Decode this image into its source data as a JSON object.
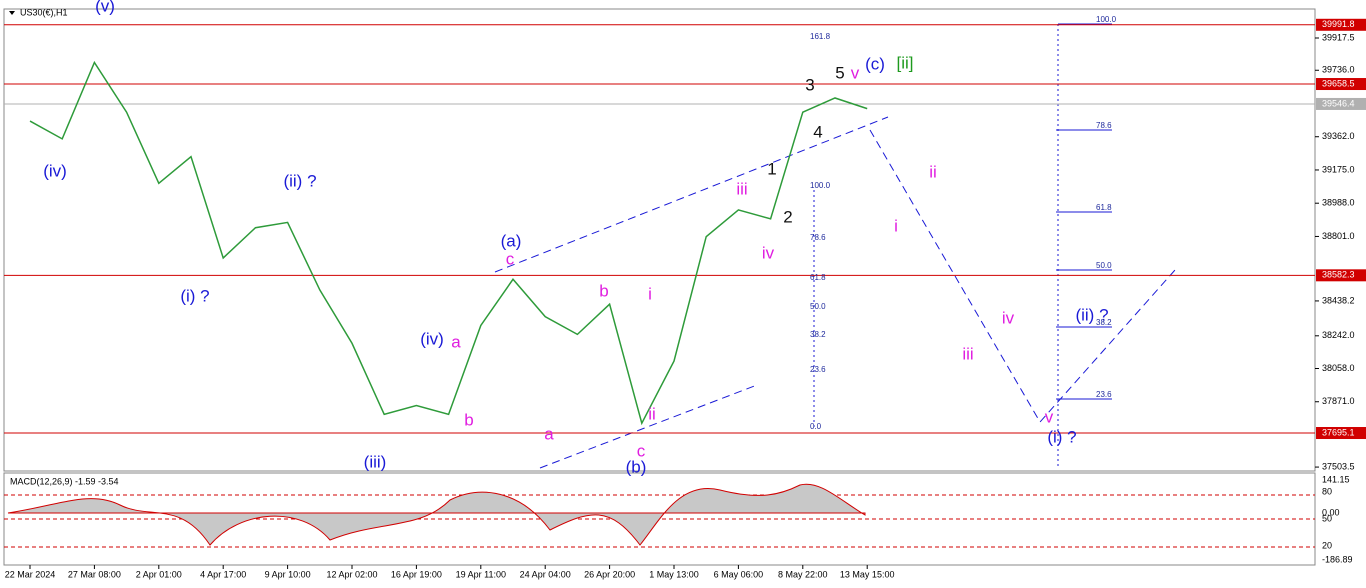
{
  "chart_data": {
    "type": "line",
    "title": "US30(€),H1",
    "categories": [
      "22 Mar 2024",
      null,
      "27 Mar 08:00",
      null,
      "2 Apr 01:00",
      null,
      "4 Apr 17:00",
      null,
      "9 Apr 10:00",
      null,
      "12 Apr 02:00",
      null,
      "16 Apr 19:00",
      null,
      "19 Apr 11:00",
      null,
      "24 Apr 04:00",
      null,
      "26 Apr 20:00",
      null,
      "1 May 13:00",
      null,
      "6 May 06:00",
      null,
      "8 May 22:00",
      null,
      "13 May 15:00"
    ],
    "series": [
      {
        "color": "#2e9b3a",
        "values": [
          39450,
          39350,
          39780,
          39500,
          39100,
          39250,
          38680,
          38850,
          38880,
          38500,
          38200,
          37800,
          37850,
          37800,
          38300,
          38560,
          38350,
          38250,
          38420,
          37750,
          38100,
          38800,
          38950,
          38900,
          39500,
          39580,
          39520
        ]
      }
    ],
    "ylim": [
      37487,
      40075
    ],
    "yticks": [
      39917.5,
      {
        "value": 39736.0,
        "label": "39736.0"
      },
      {
        "value": 39362.0,
        "label": "39362.0"
      },
      {
        "value": 39175.0,
        "label": "39175.0"
      },
      {
        "value": 38988.0,
        "label": "38988.0"
      },
      {
        "value": 38801.0,
        "label": "38801.0"
      },
      38438.2,
      {
        "value": 38242.0,
        "label": "38242.0"
      },
      {
        "value": 38058.0,
        "label": "38058.0"
      },
      {
        "value": 37871.0,
        "label": "37871.0"
      },
      37503.5
    ],
    "levels": [
      {
        "value": 39991.8,
        "color": "#d10000"
      },
      {
        "value": 39658.5,
        "color": "#d10000"
      },
      {
        "value": 39546.4,
        "color": "#b0b0b0"
      },
      {
        "value": 38582.3,
        "color": "#d10000"
      },
      {
        "value": 37695.1,
        "color": "#d10000"
      }
    ],
    "annotations": [
      {
        "text": "(v)",
        "color": "#1a1ad6"
      },
      {
        "text": "(iv)",
        "color": "#1a1ad6"
      },
      {
        "text": "(ii) ?",
        "color": "#1a1ad6"
      },
      {
        "text": "(i) ?",
        "color": "#1a1ad6"
      },
      {
        "text": "(iii)",
        "color": "#1a1ad6"
      },
      {
        "text": "(iv)",
        "color": "#1a1ad6"
      },
      {
        "text": "a",
        "color": "#e01ee0"
      },
      {
        "text": "b",
        "color": "#e01ee0"
      },
      {
        "text": "(a)",
        "color": "#1a1ad6"
      },
      {
        "text": "c",
        "color": "#e01ee0"
      },
      {
        "text": "a",
        "color": "#e01ee0"
      },
      {
        "text": "b",
        "color": "#e01ee0"
      },
      {
        "text": "i",
        "color": "#e01ee0"
      },
      {
        "text": "ii",
        "color": "#e01ee0"
      },
      {
        "text": "c",
        "color": "#e01ee0"
      },
      {
        "text": "(b)",
        "color": "#1a1ad6"
      },
      {
        "text": "iii",
        "color": "#e01ee0"
      },
      {
        "text": "iv",
        "color": "#e01ee0"
      },
      {
        "text": "1",
        "color": "#111111"
      },
      {
        "text": "2",
        "color": "#111111"
      },
      {
        "text": "3",
        "color": "#111111"
      },
      {
        "text": "4",
        "color": "#111111"
      },
      {
        "text": "5",
        "color": "#111111"
      },
      {
        "text": "v",
        "color": "#e01ee0"
      },
      {
        "text": "(c)",
        "color": "#1a1ad6"
      },
      {
        "text": "[ii]",
        "color": "#1e9a1e"
      },
      {
        "text": "ii",
        "color": "#e01ee0"
      },
      {
        "text": "i",
        "color": "#e01ee0"
      },
      {
        "text": "iv",
        "color": "#e01ee0"
      },
      {
        "text": "iii",
        "color": "#e01ee0"
      },
      {
        "text": "v",
        "color": "#e01ee0"
      },
      {
        "text": "(i) ?",
        "color": "#1a1ad6"
      },
      {
        "text": "(ii) ?",
        "color": "#1a1ad6"
      }
    ],
    "fib_left": [
      "161.8",
      "100.0",
      "78.6",
      "61.8",
      "50.0",
      "38.2",
      "23.6",
      "0.0"
    ],
    "fib_right": [
      "100.0",
      "78.6",
      "61.8",
      "50.0",
      "38.2",
      "23.6"
    ],
    "macd": {
      "label": "MACD(12,26,9) -1.59 -3.54",
      "scale_labels": [
        "141.15",
        "80",
        "0.00",
        "50",
        "20",
        "-186.89"
      ]
    }
  }
}
